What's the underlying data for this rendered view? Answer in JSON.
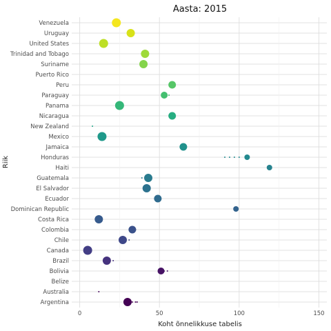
{
  "chart_data": {
    "type": "scatter",
    "title": "Aasta: 2015",
    "xlabel": "Koht õnnelikkuse tabelis",
    "ylabel": "Riik",
    "xlim": [
      -5,
      155
    ],
    "x_ticks": [
      0,
      50,
      100,
      150
    ],
    "grid": true,
    "legend": "none",
    "categories": [
      "Argentina",
      "Australia",
      "Belize",
      "Bolivia",
      "Brazil",
      "Canada",
      "Chile",
      "Colombia",
      "Costa Rica",
      "Dominican Republic",
      "Ecuador",
      "El Salvador",
      "Guatemala",
      "Haiti",
      "Honduras",
      "Jamaica",
      "Mexico",
      "New Zealand",
      "Nicaragua",
      "Panama",
      "Paraguay",
      "Peru",
      "Puerto Rico",
      "Suriname",
      "Trinidad and Tobago",
      "United States",
      "Uruguay",
      "Venezuela"
    ],
    "points": [
      {
        "country": "Argentina",
        "x": 30,
        "size": 6,
        "color": "#440154",
        "trail": [
          31,
          33,
          35,
          36
        ]
      },
      {
        "country": "Australia",
        "x": 12,
        "size": 1,
        "color": "#46075a",
        "trail": []
      },
      {
        "country": "Belize",
        "x": null,
        "size": 0,
        "color": "#470e61",
        "trail": []
      },
      {
        "country": "Bolivia",
        "x": 51,
        "size": 5,
        "color": "#471365",
        "trail": [
          53,
          55
        ]
      },
      {
        "country": "Brazil",
        "x": 17,
        "size": 6,
        "color": "#46337e",
        "trail": [
          19,
          21
        ]
      },
      {
        "country": "Canada",
        "x": 5,
        "size": 6.5,
        "color": "#433e85",
        "trail": []
      },
      {
        "country": "Chile",
        "x": 27,
        "size": 6,
        "color": "#3f4889",
        "trail": [
          29,
          31
        ]
      },
      {
        "country": "Colombia",
        "x": 33,
        "size": 5.5,
        "color": "#3b528b",
        "trail": [
          35
        ]
      },
      {
        "country": "Costa Rica",
        "x": 12,
        "size": 6,
        "color": "#375b8d",
        "trail": []
      },
      {
        "country": "Dominican Republic",
        "x": 98,
        "size": 4,
        "color": "#33638d",
        "trail": []
      },
      {
        "country": "Ecuador",
        "x": 49,
        "size": 5.5,
        "color": "#2f6b8e",
        "trail": []
      },
      {
        "country": "El Salvador",
        "x": 42,
        "size": 6,
        "color": "#2c728e",
        "trail": [
          40
        ]
      },
      {
        "country": "Guatemala",
        "x": 43,
        "size": 6,
        "color": "#297b8e",
        "trail": [
          39,
          41
        ]
      },
      {
        "country": "Haiti",
        "x": 119,
        "size": 4,
        "color": "#26828e",
        "trail": []
      },
      {
        "country": "Honduras",
        "x": 105,
        "size": 4,
        "color": "#23898e",
        "trail": [
          91,
          94,
          97,
          100
        ]
      },
      {
        "country": "Jamaica",
        "x": 65,
        "size": 5.5,
        "color": "#21918c",
        "trail": []
      },
      {
        "country": "Mexico",
        "x": 14,
        "size": 6.5,
        "color": "#1f998a",
        "trail": []
      },
      {
        "country": "New Zealand",
        "x": 8,
        "size": 1,
        "color": "#20a386",
        "trail": []
      },
      {
        "country": "Nicaragua",
        "x": 58,
        "size": 5.5,
        "color": "#26ad81",
        "trail": []
      },
      {
        "country": "Panama",
        "x": 25,
        "size": 6.5,
        "color": "#35b779",
        "trail": []
      },
      {
        "country": "Paraguay",
        "x": 53,
        "size": 5,
        "color": "#44bf70",
        "trail": [
          56
        ]
      },
      {
        "country": "Peru",
        "x": 58,
        "size": 5.5,
        "color": "#56c667",
        "trail": []
      },
      {
        "country": "Puerto Rico",
        "x": null,
        "size": 0,
        "color": "#6ccd5a",
        "trail": []
      },
      {
        "country": "Suriname",
        "x": 40,
        "size": 6,
        "color": "#84d44b",
        "trail": []
      },
      {
        "country": "Trinidad and Tobago",
        "x": 41,
        "size": 6,
        "color": "#9fda3a",
        "trail": []
      },
      {
        "country": "United States",
        "x": 15,
        "size": 6.5,
        "color": "#bddf26",
        "trail": []
      },
      {
        "country": "Uruguay",
        "x": 32,
        "size": 6,
        "color": "#d8e219",
        "trail": []
      },
      {
        "country": "Venezuela",
        "x": 23,
        "size": 6.5,
        "color": "#f4e61e",
        "trail": []
      }
    ]
  }
}
